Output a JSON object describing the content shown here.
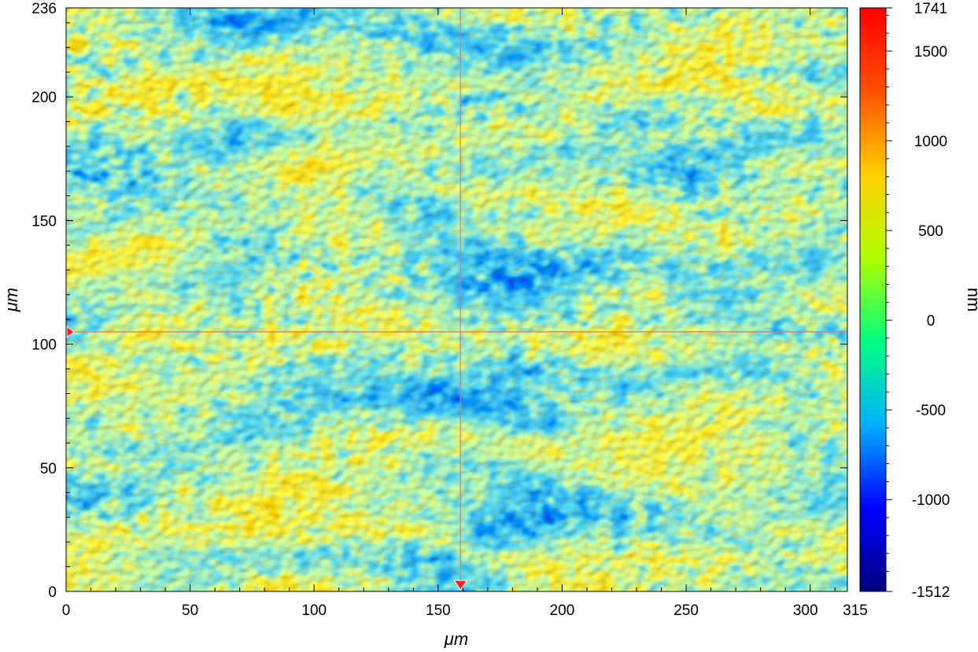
{
  "chart_data": {
    "type": "heatmap",
    "title": "",
    "xlabel": "μm",
    "ylabel": "μm",
    "xlim": [
      0,
      315
    ],
    "ylim": [
      0,
      236
    ],
    "x_ticks": [
      {
        "value": 0,
        "label": "0"
      },
      {
        "value": 50,
        "label": "50"
      },
      {
        "value": 100,
        "label": "100"
      },
      {
        "value": 150,
        "label": "150"
      },
      {
        "value": 200,
        "label": "200"
      },
      {
        "value": 250,
        "label": "250"
      },
      {
        "value": 300,
        "label": "300"
      },
      {
        "value": 315,
        "label": "315"
      }
    ],
    "y_ticks": [
      {
        "value": 0,
        "label": "0"
      },
      {
        "value": 50,
        "label": "50"
      },
      {
        "value": 100,
        "label": "100"
      },
      {
        "value": 150,
        "label": "150"
      },
      {
        "value": 200,
        "label": "200"
      },
      {
        "value": 236,
        "label": "236"
      }
    ],
    "colorbar": {
      "label": "nm",
      "min": -1512,
      "max": 1741,
      "ticks": [
        {
          "value": 1741,
          "label": "1741"
        },
        {
          "value": 1500,
          "label": "1500"
        },
        {
          "value": 1000,
          "label": "1000"
        },
        {
          "value": 500,
          "label": "500"
        },
        {
          "value": 0,
          "label": "0"
        },
        {
          "value": -500,
          "label": "-500"
        },
        {
          "value": -1000,
          "label": "-1000"
        },
        {
          "value": -1512,
          "label": "-1512"
        }
      ],
      "colors": [
        "#00007f",
        "#0000ff",
        "#00b0ff",
        "#00ff80",
        "#b0ff00",
        "#ffd000",
        "#ff5000",
        "#ff0000"
      ]
    },
    "crosshair": {
      "x": 159,
      "y": 105,
      "color": "#ff6a5a"
    },
    "grid": false,
    "legend": "none"
  }
}
